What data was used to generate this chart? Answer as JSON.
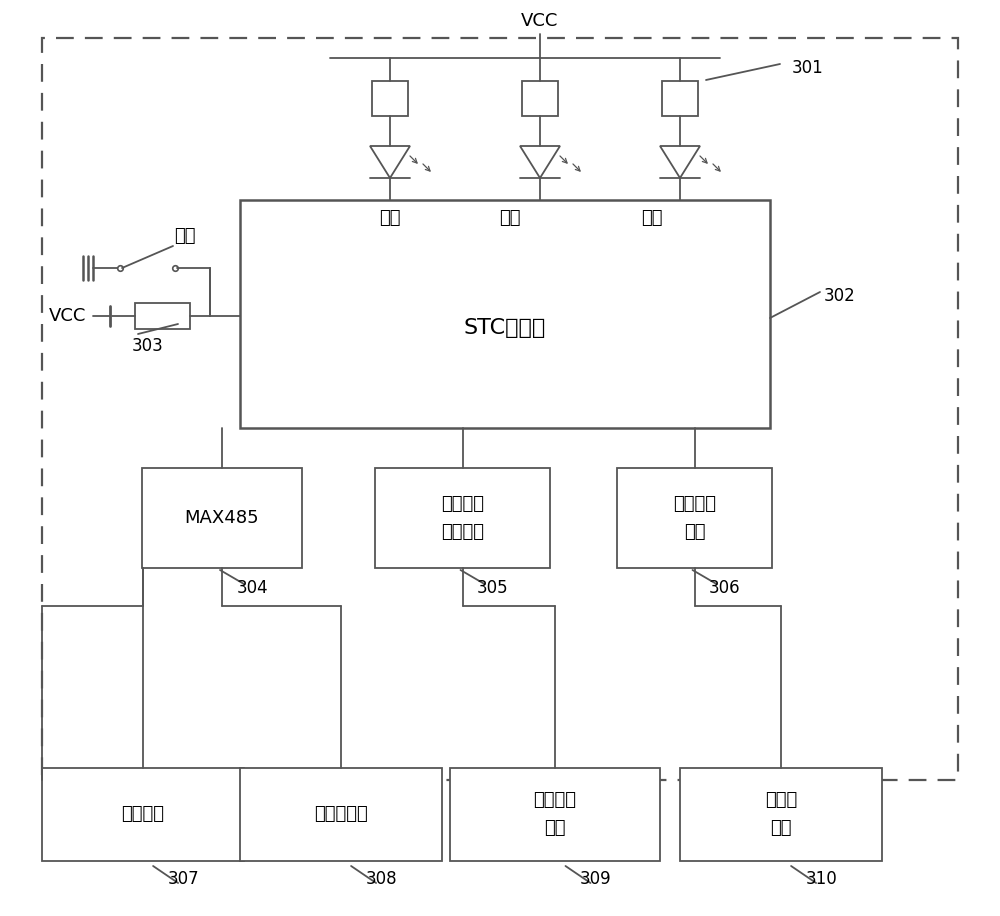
{
  "bg_color": "#ffffff",
  "line_color": "#555555",
  "lw": 1.3,
  "fig_w": 10.0,
  "fig_h": 9.16,
  "dpi": 100,
  "labels": {
    "VCC_top": "VCC",
    "VCC_left": "VCC",
    "diao_ling": "调零",
    "stc": "STC单片机",
    "yun_xing": "运行",
    "ling_wei": "零位",
    "tong_xun": "通讯",
    "max485": "MAX485",
    "bujin_drive1": "步进电机",
    "bujin_drive2": "驱动模块",
    "diao_guang_ctrl1": "调光控制",
    "diao_guang_ctrl2": "模块",
    "dian_yuan": "电源接口",
    "jieshou": "接收器接口",
    "bujin_iface1": "步进电机",
    "bujin_iface2": "接口",
    "diao_guang_iface1": "调光器",
    "diao_guang_iface2": "接口",
    "n301": "301",
    "n302": "302",
    "n303": "303",
    "n304": "304",
    "n305": "305",
    "n306": "306",
    "n307": "307",
    "n308": "308",
    "n309": "309",
    "n310": "310"
  },
  "font_zh": 13,
  "font_num": 12,
  "font_label": 13
}
